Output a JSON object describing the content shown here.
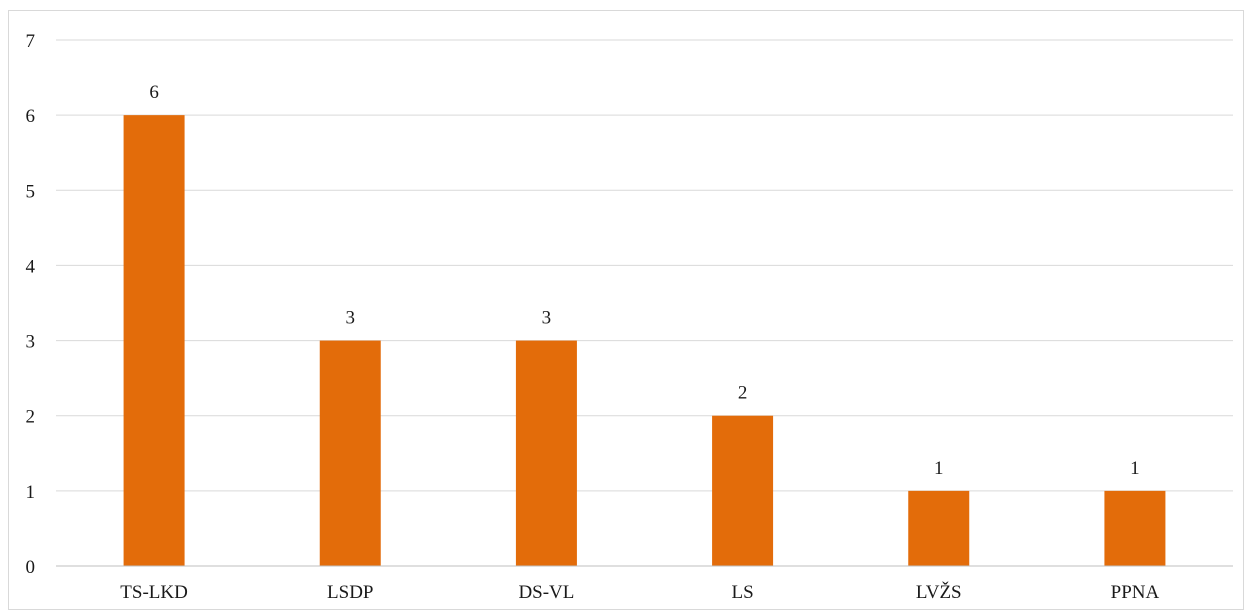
{
  "chart_data": {
    "type": "bar",
    "categories": [
      "TS-LKD",
      "LSDP",
      "DS-VL",
      "LS",
      "LVŽS",
      "PPNA"
    ],
    "values": [
      6,
      3,
      3,
      2,
      1,
      1
    ],
    "title": "",
    "xlabel": "",
    "ylabel": "",
    "ylim": [
      0,
      7
    ],
    "yticks": [
      0,
      1,
      2,
      3,
      4,
      5,
      6,
      7
    ],
    "grid": true,
    "legend": "none",
    "data_labels": true,
    "bar_color": "#e36c0a",
    "gridline_color": "#d9d9d9",
    "axis_color": "#bfbfbf"
  }
}
